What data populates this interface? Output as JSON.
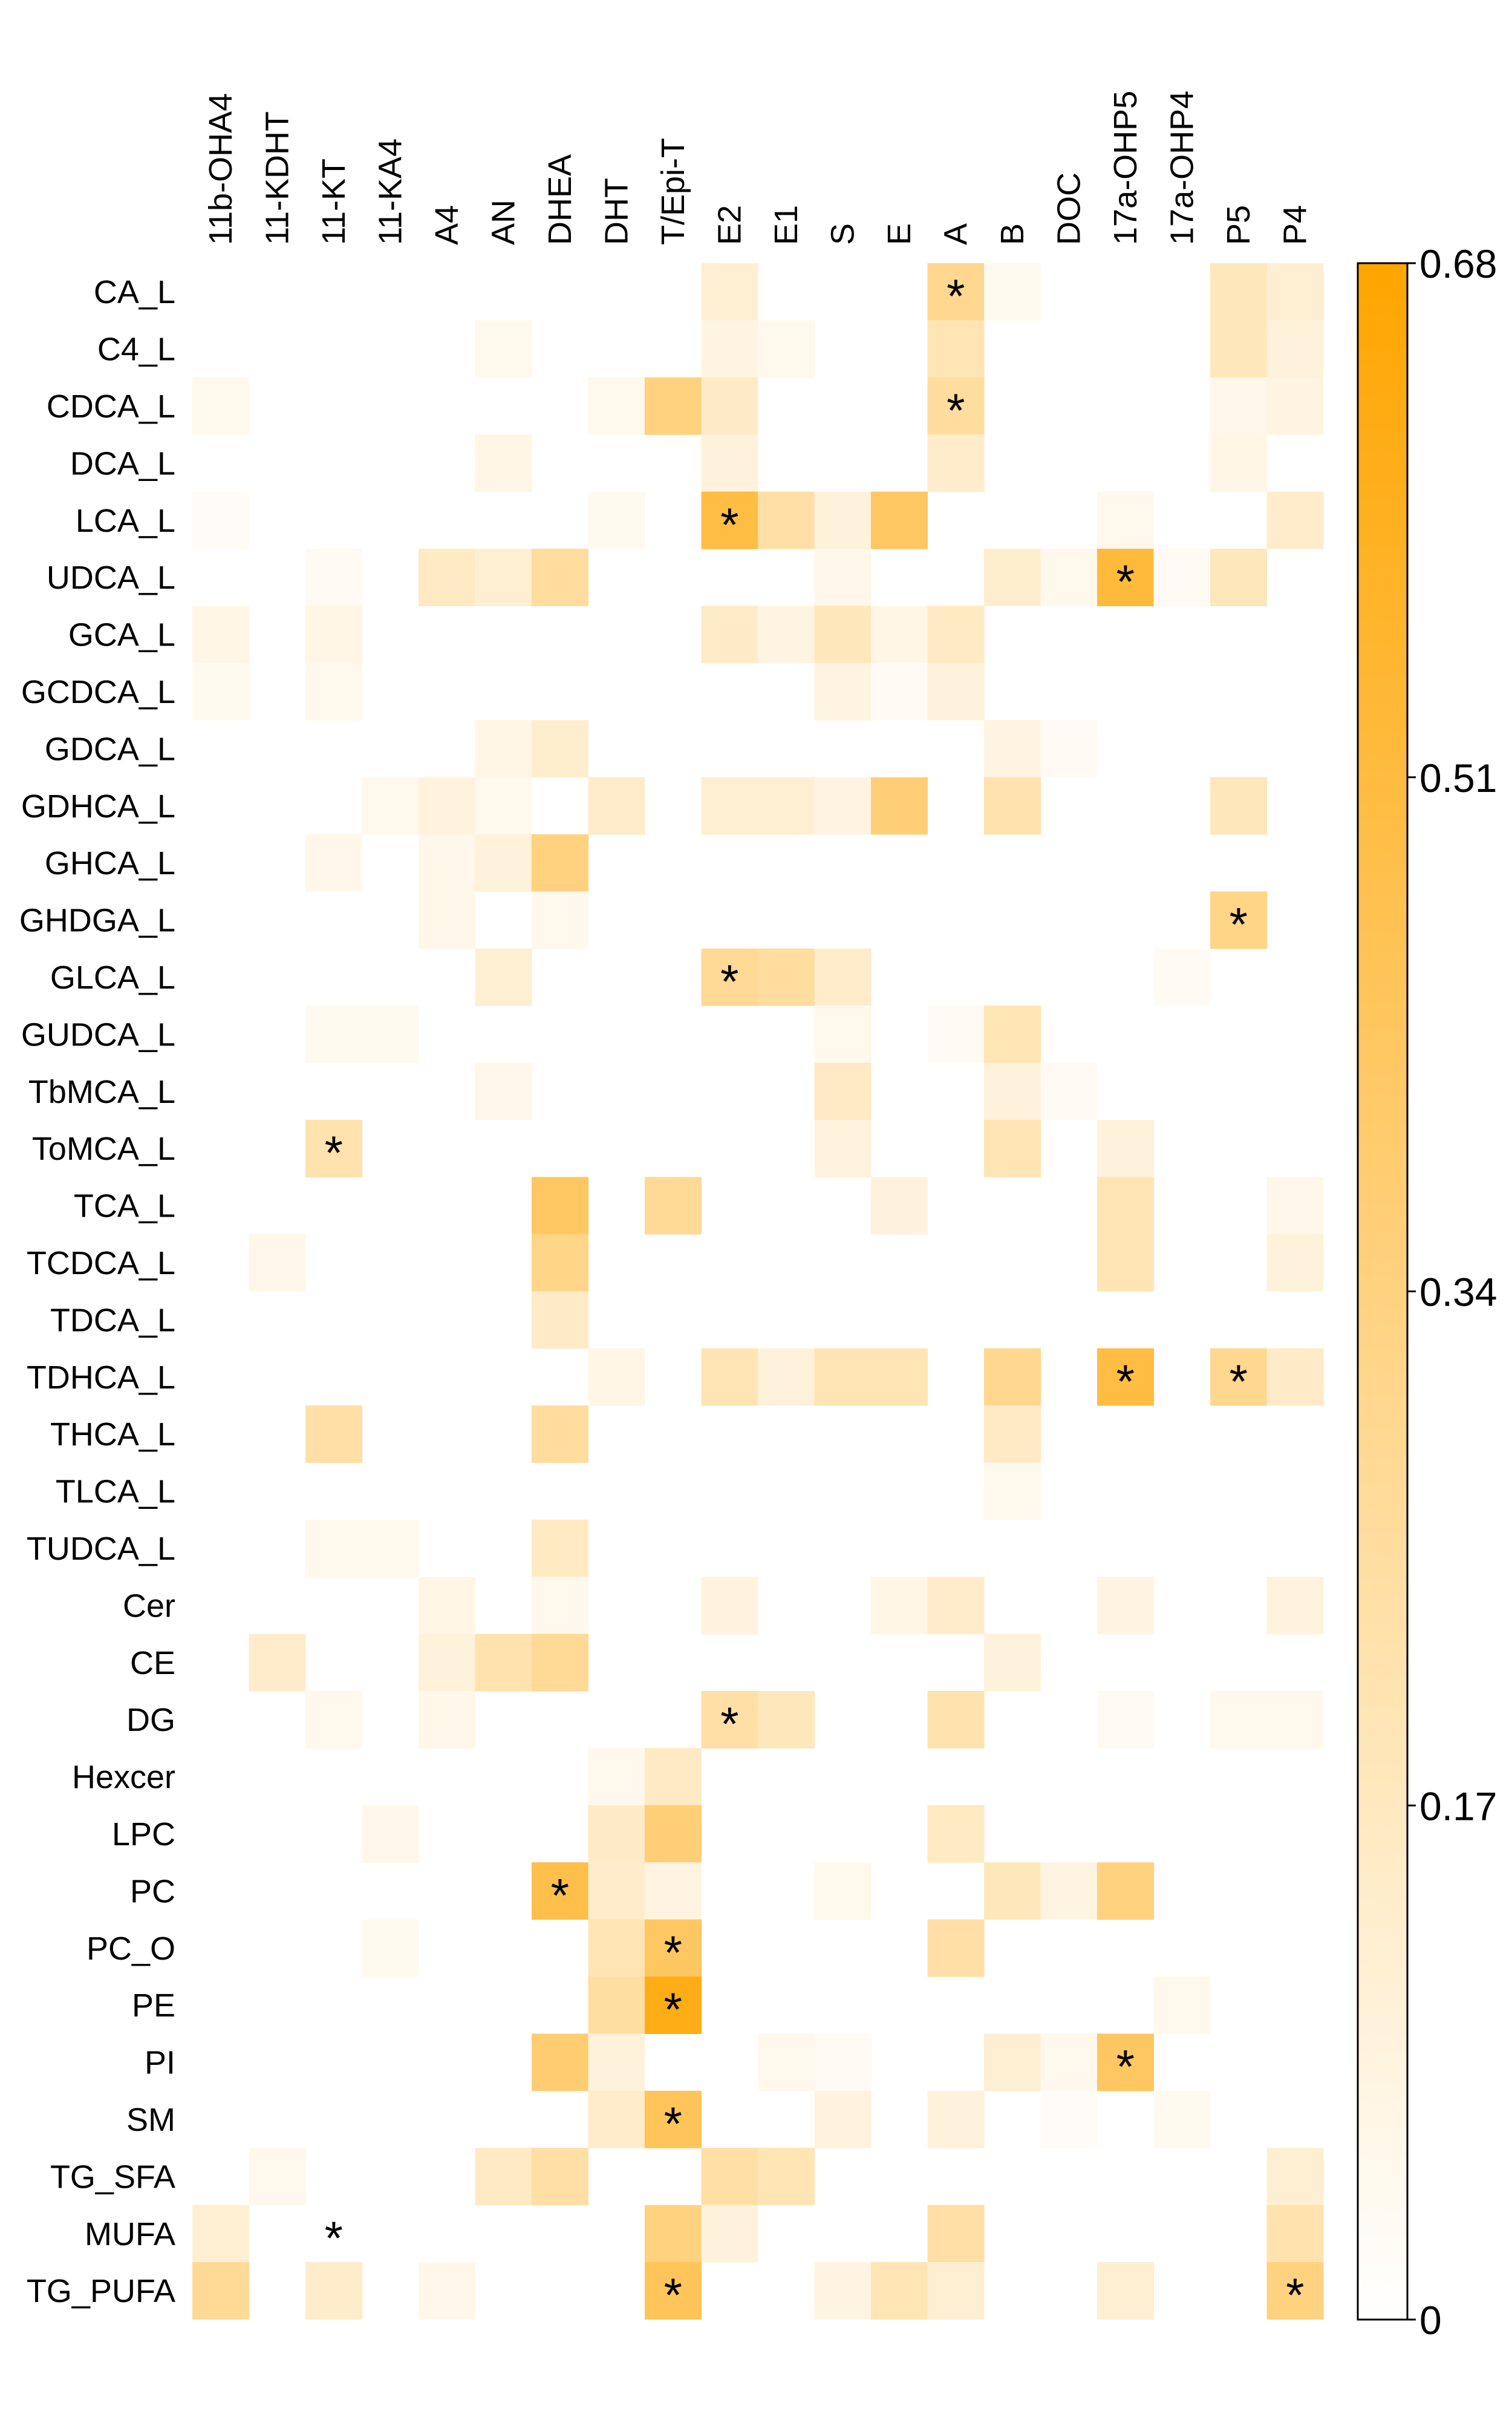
{
  "chart_data": {
    "type": "heatmap",
    "title": "",
    "xlabel": "",
    "ylabel": "",
    "columns": [
      "11b-OHA4",
      "11-KDHT",
      "11-KT",
      "11-KA4",
      "A4",
      "AN",
      "DHEA",
      "DHT",
      "T/Epi-T",
      "E2",
      "E1",
      "S",
      "E",
      "A",
      "B",
      "DOC",
      "17a-OHP5",
      "17a-OHP4",
      "P5",
      "P4"
    ],
    "rows": [
      "CA_L",
      "C4_L",
      "CDCA_L",
      "DCA_L",
      "LCA_L",
      "UDCA_L",
      "GCA_L",
      "GCDCA_L",
      "GDCA_L",
      "GDHCA_L",
      "GHCA_L",
      "GHDGA_L",
      "GLCA_L",
      "GUDCA_L",
      "TbMCA_L",
      "ToMCA_L",
      "TCA_L",
      "TCDCA_L",
      "TDCA_L",
      "TDHCA_L",
      "THCA_L",
      "TLCA_L",
      "TUDCA_L",
      "Cer",
      "CE",
      "DG",
      "Hexcer",
      "LPC",
      "PC",
      "PC_O",
      "PE",
      "PI",
      "SM",
      "TG_SFA",
      "MUFA",
      "TG_PUFA"
    ],
    "values": [
      [
        0,
        0,
        0,
        0,
        0,
        0,
        0,
        0,
        0,
        0.12,
        0,
        0,
        0,
        0.3,
        0.04,
        0,
        0,
        0,
        0.18,
        0.12
      ],
      [
        0,
        0,
        0,
        0,
        0,
        0.05,
        0,
        0,
        0,
        0.08,
        0.05,
        0,
        0,
        0.2,
        0,
        0,
        0,
        0,
        0.18,
        0.1
      ],
      [
        0.05,
        0,
        0,
        0,
        0,
        0,
        0,
        0.05,
        0.34,
        0.15,
        0,
        0,
        0,
        0.26,
        0,
        0,
        0,
        0,
        0.06,
        0.08
      ],
      [
        0,
        0,
        0,
        0,
        0,
        0.07,
        0,
        0,
        0,
        0.1,
        0,
        0,
        0,
        0.14,
        0,
        0,
        0,
        0,
        0.07,
        0
      ],
      [
        0.02,
        0,
        0,
        0,
        0,
        0,
        0,
        0.04,
        0,
        0.5,
        0.24,
        0.1,
        0.42,
        0,
        0,
        0,
        0.05,
        0,
        0,
        0.14
      ],
      [
        0,
        0,
        0.03,
        0,
        0.16,
        0.12,
        0.26,
        0,
        0,
        0,
        0,
        0.06,
        0,
        0,
        0.13,
        0.05,
        0.52,
        0.03,
        0.18,
        0
      ],
      [
        0.07,
        0,
        0.07,
        0,
        0,
        0,
        0,
        0,
        0,
        0.15,
        0.08,
        0.18,
        0.07,
        0.16,
        0,
        0,
        0,
        0,
        0,
        0
      ],
      [
        0.04,
        0,
        0.05,
        0,
        0,
        0,
        0,
        0,
        0,
        0,
        0,
        0.08,
        0.03,
        0.1,
        0,
        0,
        0,
        0,
        0,
        0
      ],
      [
        0,
        0,
        0,
        0,
        0,
        0.07,
        0.13,
        0,
        0,
        0,
        0,
        0,
        0,
        0,
        0.08,
        0.03,
        0,
        0,
        0,
        0
      ],
      [
        0,
        0,
        0,
        0.05,
        0.09,
        0.05,
        0,
        0.14,
        0,
        0.12,
        0.12,
        0.08,
        0.36,
        0,
        0.22,
        0,
        0,
        0,
        0.18,
        0
      ],
      [
        0,
        0,
        0.06,
        0,
        0.06,
        0.1,
        0.34,
        0,
        0,
        0,
        0,
        0,
        0,
        0,
        0,
        0,
        0,
        0,
        0,
        0
      ],
      [
        0,
        0,
        0,
        0,
        0.06,
        0,
        0.05,
        0,
        0,
        0,
        0,
        0,
        0,
        0,
        0,
        0,
        0,
        0,
        0.32,
        0
      ],
      [
        0,
        0,
        0,
        0,
        0,
        0.12,
        0,
        0,
        0,
        0.28,
        0.26,
        0.14,
        0,
        0,
        0,
        0,
        0,
        0.03,
        0,
        0
      ],
      [
        0,
        0,
        0.04,
        0.04,
        0,
        0,
        0,
        0,
        0,
        0,
        0,
        0.05,
        0,
        0.03,
        0.2,
        0,
        0,
        0,
        0,
        0
      ],
      [
        0,
        0,
        0,
        0,
        0,
        0.06,
        0,
        0,
        0,
        0,
        0,
        0.16,
        0,
        0,
        0.1,
        0.03,
        0,
        0,
        0,
        0
      ],
      [
        0,
        0,
        0.22,
        0,
        0,
        0,
        0,
        0,
        0,
        0,
        0,
        0.09,
        0,
        0,
        0.2,
        0,
        0.1,
        0,
        0,
        0
      ],
      [
        0,
        0,
        0,
        0,
        0,
        0,
        0.42,
        0,
        0.28,
        0,
        0,
        0,
        0.1,
        0,
        0,
        0,
        0.2,
        0,
        0,
        0.06
      ],
      [
        0,
        0.06,
        0,
        0,
        0,
        0,
        0.32,
        0,
        0,
        0,
        0,
        0,
        0,
        0,
        0,
        0,
        0.2,
        0,
        0,
        0.1
      ],
      [
        0,
        0,
        0,
        0,
        0,
        0,
        0.15,
        0,
        0,
        0,
        0,
        0,
        0,
        0,
        0,
        0,
        0,
        0,
        0,
        0
      ],
      [
        0,
        0,
        0,
        0,
        0,
        0,
        0,
        0.07,
        0,
        0.2,
        0.1,
        0.2,
        0.2,
        0,
        0.3,
        0,
        0.5,
        0,
        0.3,
        0.15
      ],
      [
        0,
        0,
        0.24,
        0,
        0,
        0,
        0.26,
        0,
        0,
        0,
        0,
        0,
        0,
        0,
        0.16,
        0,
        0,
        0,
        0,
        0
      ],
      [
        0,
        0,
        0,
        0,
        0,
        0,
        0,
        0,
        0,
        0,
        0,
        0,
        0,
        0,
        0.05,
        0,
        0,
        0,
        0,
        0
      ],
      [
        0,
        0,
        0.05,
        0.05,
        0,
        0,
        0.16,
        0,
        0,
        0,
        0,
        0,
        0,
        0,
        0,
        0,
        0,
        0,
        0,
        0
      ],
      [
        0,
        0,
        0,
        0,
        0.07,
        0,
        0.05,
        0,
        0,
        0.09,
        0,
        0,
        0.07,
        0.14,
        0,
        0,
        0.08,
        0,
        0,
        0.09
      ],
      [
        0,
        0.14,
        0,
        0,
        0.1,
        0.22,
        0.28,
        0,
        0,
        0,
        0,
        0,
        0,
        0,
        0.1,
        0,
        0,
        0,
        0,
        0
      ],
      [
        0,
        0,
        0.05,
        0,
        0.06,
        0,
        0,
        0,
        0,
        0.24,
        0.18,
        0,
        0,
        0.22,
        0,
        0,
        0.03,
        0,
        0.05,
        0.05
      ],
      [
        0,
        0,
        0,
        0,
        0,
        0,
        0,
        0.05,
        0.16,
        0,
        0,
        0,
        0,
        0,
        0,
        0,
        0,
        0,
        0,
        0
      ],
      [
        0,
        0,
        0,
        0.06,
        0,
        0,
        0,
        0.15,
        0.36,
        0,
        0,
        0,
        0,
        0.16,
        0,
        0,
        0,
        0,
        0,
        0
      ],
      [
        0,
        0,
        0,
        0,
        0,
        0,
        0.48,
        0.14,
        0.08,
        0,
        0,
        0.05,
        0,
        0,
        0.18,
        0.08,
        0.34,
        0,
        0,
        0
      ],
      [
        0,
        0,
        0,
        0.04,
        0,
        0,
        0,
        0.2,
        0.42,
        0,
        0,
        0,
        0,
        0.24,
        0,
        0,
        0,
        0,
        0,
        0
      ],
      [
        0,
        0,
        0,
        0,
        0,
        0,
        0,
        0.25,
        0.62,
        0,
        0,
        0,
        0,
        0,
        0,
        0,
        0,
        0.05,
        0,
        0
      ],
      [
        0,
        0,
        0,
        0,
        0,
        0,
        0.38,
        0.1,
        0,
        0,
        0.05,
        0.03,
        0,
        0,
        0.12,
        0.05,
        0.42,
        0,
        0,
        0
      ],
      [
        0,
        0,
        0,
        0,
        0,
        0,
        0,
        0.14,
        0.44,
        0,
        0,
        0.09,
        0,
        0.1,
        0,
        0.02,
        0,
        0.04,
        0,
        0
      ],
      [
        0,
        0.05,
        0,
        0,
        0,
        0.16,
        0.24,
        0,
        0,
        0.24,
        0.2,
        0,
        0,
        0,
        0,
        0,
        0,
        0,
        0,
        0.12
      ],
      [
        0.12,
        0,
        0,
        0,
        0,
        0,
        0,
        0,
        0.34,
        0.1,
        0,
        0,
        0,
        0.24,
        0,
        0,
        0,
        0,
        0,
        0.22
      ],
      [
        0.28,
        0,
        0.14,
        0,
        0.06,
        0,
        0,
        0,
        0.44,
        0,
        0,
        0.08,
        0.2,
        0.12,
        0,
        0,
        0.12,
        0,
        0,
        0.34
      ]
    ],
    "significant": [
      [
        0,
        13
      ],
      [
        2,
        13
      ],
      [
        4,
        9
      ],
      [
        5,
        16
      ],
      [
        11,
        18
      ],
      [
        12,
        9
      ],
      [
        15,
        2
      ],
      [
        19,
        16
      ],
      [
        19,
        18
      ],
      [
        25,
        9
      ],
      [
        28,
        6
      ],
      [
        29,
        8
      ],
      [
        30,
        8
      ],
      [
        31,
        16
      ],
      [
        32,
        8
      ],
      [
        34,
        2
      ],
      [
        35,
        8
      ],
      [
        35,
        19
      ]
    ],
    "significance_marker": "*",
    "colorbar": {
      "min": 0,
      "max": 0.68,
      "ticks": [
        "0",
        "0.17",
        "0.34",
        "0.51",
        "0.68"
      ],
      "color_low": "#ffffff",
      "color_high": "#ffa500"
    },
    "grid": false,
    "legend": "right"
  }
}
